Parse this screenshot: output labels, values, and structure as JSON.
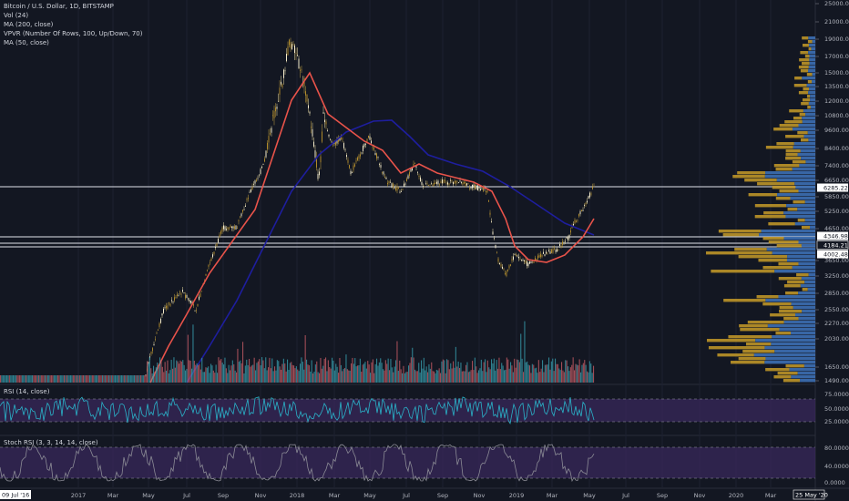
{
  "legend": {
    "symbol": "Bitcoin / U.S. Dollar, 1D, BITSTAMP",
    "vol": "Vol (24)",
    "ma200": "MA (200, close)",
    "vpvr": "VPVR (Number Of Rows, 100, Up/Down, 70)",
    "ma50": "MA (50, close)"
  },
  "price_axis": [
    "25000.00",
    "21000.00",
    "19000.00",
    "17000.00",
    "15000.00",
    "13500.00",
    "12000.00",
    "10800.00",
    "9600.00",
    "8400.00",
    "7400.00",
    "6650.00",
    "5850.00",
    "5250.00",
    "4650.00",
    "3650.00",
    "3250.00",
    "2850.00",
    "2550.00",
    "2270.00",
    "2030.00",
    "1650.00",
    "1490.00"
  ],
  "price_tags": [
    {
      "label": "6285.22",
      "style": "white"
    },
    {
      "label": "4346.98",
      "style": "white"
    },
    {
      "label": "4184.21",
      "style": "dark"
    },
    {
      "label": "4002.48",
      "style": "white"
    }
  ],
  "rsi": {
    "label": "RSI (14, close)",
    "axis": [
      "75.0000",
      "50.0000",
      "25.0000"
    ]
  },
  "stoch": {
    "label": "Stoch RSI (3, 3, 14, 14, close)",
    "axis": [
      "80.0000",
      "40.0000",
      "0.0000"
    ]
  },
  "time_axis": [
    "09 Jul '16",
    "2017",
    "Mar",
    "May",
    "Jul",
    "Sep",
    "Nov",
    "2018",
    "Mar",
    "May",
    "Jul",
    "Sep",
    "Nov",
    "2019",
    "Mar",
    "May",
    "Jul",
    "Sep",
    "Nov",
    "2020",
    "Mar",
    "25 May '20"
  ],
  "colors": {
    "background": "#131722",
    "up": "#26a69a",
    "down": "#ef5350",
    "ma200": "#1e1e9e",
    "ma50": "#e8534a",
    "vpvr_up": "#3d6fb4",
    "vpvr_down": "#c79b28",
    "rsi_line": "#2ab3c9",
    "rsi_band": "#3b2a5e",
    "stoch_line": "#8b8b95"
  }
}
